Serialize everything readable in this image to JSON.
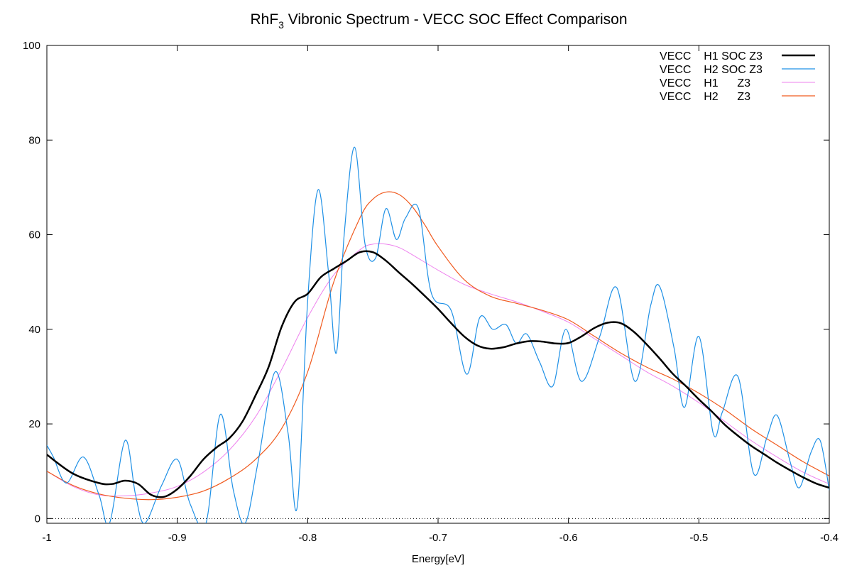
{
  "chart_data": {
    "type": "line",
    "title": "RhF3 Vibronic Spectrum - VECC SOC Effect Comparison",
    "title_main": "RhF",
    "title_sub": "3",
    "title_rest": " Vibronic Spectrum - VECC SOC Effect Comparison",
    "xlabel": "Energy[eV]",
    "ylabel": "",
    "xlim": [
      -1.0,
      -0.4
    ],
    "ylim": [
      -1,
      100
    ],
    "xticks": [
      -1.0,
      -0.9,
      -0.8,
      -0.7,
      -0.6,
      -0.5,
      -0.4
    ],
    "xtick_labels": [
      "-1",
      "-0.9",
      "-0.8",
      "-0.7",
      "-0.6",
      "-0.5",
      "-0.4"
    ],
    "yticks": [
      0,
      20,
      40,
      60,
      80,
      100
    ],
    "ytick_labels": [
      "0",
      "20",
      "40",
      "60",
      "80",
      "100"
    ],
    "grid": false,
    "zero_line": "dotted",
    "legend_position": "top-right",
    "series": [
      {
        "name": "VECC    H1 SOC Z3",
        "color": "#000000",
        "x": [
          -1.0,
          -0.98,
          -0.96,
          -0.95,
          -0.94,
          -0.93,
          -0.92,
          -0.91,
          -0.9,
          -0.89,
          -0.88,
          -0.87,
          -0.86,
          -0.85,
          -0.84,
          -0.83,
          -0.82,
          -0.81,
          -0.8,
          -0.79,
          -0.78,
          -0.77,
          -0.76,
          -0.75,
          -0.74,
          -0.73,
          -0.72,
          -0.71,
          -0.7,
          -0.69,
          -0.68,
          -0.67,
          -0.66,
          -0.65,
          -0.64,
          -0.63,
          -0.62,
          -0.61,
          -0.6,
          -0.59,
          -0.58,
          -0.57,
          -0.56,
          -0.55,
          -0.54,
          -0.53,
          -0.52,
          -0.51,
          -0.5,
          -0.49,
          -0.48,
          -0.47,
          -0.46,
          -0.45,
          -0.44,
          -0.43,
          -0.42,
          -0.41,
          -0.4
        ],
        "y": [
          13.5,
          9.5,
          7.5,
          7.3,
          8.0,
          7.3,
          5.0,
          4.6,
          6.2,
          9.0,
          12.5,
          15.0,
          17.0,
          20.5,
          26.0,
          32.0,
          40.5,
          45.8,
          47.5,
          51.0,
          52.8,
          54.5,
          56.3,
          56.3,
          54.5,
          52.0,
          49.6,
          47.0,
          44.3,
          41.3,
          38.5,
          36.6,
          35.9,
          36.2,
          37.0,
          37.5,
          37.4,
          37.0,
          37.1,
          38.5,
          40.3,
          41.4,
          41.3,
          39.5,
          36.8,
          33.8,
          30.6,
          28.0,
          25.2,
          22.6,
          19.8,
          17.5,
          15.4,
          13.6,
          11.8,
          10.2,
          8.7,
          7.4,
          6.5
        ]
      },
      {
        "name": "VECC    H2 SOC Z3",
        "color": "#1e90e6",
        "x": [
          -1.0,
          -0.995,
          -0.985,
          -0.972,
          -0.96,
          -0.952,
          -0.94,
          -0.932,
          -0.925,
          -0.912,
          -0.9,
          -0.89,
          -0.878,
          -0.867,
          -0.857,
          -0.848,
          -0.838,
          -0.825,
          -0.815,
          -0.808,
          -0.8,
          -0.792,
          -0.784,
          -0.778,
          -0.772,
          -0.764,
          -0.756,
          -0.748,
          -0.74,
          -0.732,
          -0.725,
          -0.715,
          -0.705,
          -0.69,
          -0.678,
          -0.668,
          -0.658,
          -0.648,
          -0.64,
          -0.632,
          -0.622,
          -0.612,
          -0.602,
          -0.59,
          -0.576,
          -0.563,
          -0.549,
          -0.537,
          -0.53,
          -0.519,
          -0.511,
          -0.5,
          -0.489,
          -0.482,
          -0.47,
          -0.458,
          -0.448,
          -0.44,
          -0.43,
          -0.423,
          -0.414,
          -0.407,
          -0.4
        ],
        "y": [
          15.5,
          13.0,
          7.5,
          13.0,
          5.0,
          -1.0,
          16.5,
          5.0,
          -1.0,
          7.0,
          12.5,
          3.0,
          -1.0,
          22.0,
          6.0,
          -1.0,
          12.0,
          31.0,
          18.0,
          2.5,
          46.0,
          69.5,
          52.0,
          35.0,
          60.0,
          78.5,
          58.0,
          55.0,
          65.5,
          59.0,
          63.5,
          65.5,
          47.5,
          44.0,
          30.5,
          42.5,
          40.0,
          41.0,
          37.0,
          39.0,
          33.0,
          28.0,
          40.0,
          29.0,
          38.5,
          48.8,
          29.0,
          45.0,
          49.0,
          36.0,
          23.5,
          38.5,
          18.0,
          22.5,
          30.0,
          9.5,
          17.0,
          21.8,
          12.0,
          6.5,
          14.0,
          16.5,
          6.0
        ]
      },
      {
        "name": "VECC    H1      Z3",
        "color": "#ee82ee",
        "x": [
          -1.0,
          -0.98,
          -0.96,
          -0.94,
          -0.92,
          -0.9,
          -0.88,
          -0.86,
          -0.84,
          -0.82,
          -0.8,
          -0.78,
          -0.76,
          -0.75,
          -0.74,
          -0.73,
          -0.72,
          -0.7,
          -0.68,
          -0.66,
          -0.64,
          -0.62,
          -0.6,
          -0.58,
          -0.56,
          -0.54,
          -0.52,
          -0.5,
          -0.48,
          -0.46,
          -0.44,
          -0.42,
          -0.4
        ],
        "y": [
          10.0,
          6.8,
          5.0,
          4.8,
          5.4,
          6.8,
          9.8,
          14.5,
          21.5,
          31.5,
          42.5,
          51.5,
          56.8,
          58.0,
          58.0,
          57.3,
          55.8,
          52.5,
          49.5,
          47.5,
          45.8,
          43.8,
          41.5,
          38.0,
          34.5,
          31.0,
          28.0,
          24.5,
          20.5,
          16.5,
          13.0,
          9.8,
          7.3
        ]
      },
      {
        "name": "VECC    H2      Z3",
        "color": "#f05a1e",
        "x": [
          -1.0,
          -0.98,
          -0.96,
          -0.94,
          -0.92,
          -0.9,
          -0.88,
          -0.86,
          -0.84,
          -0.82,
          -0.8,
          -0.78,
          -0.76,
          -0.75,
          -0.74,
          -0.73,
          -0.72,
          -0.71,
          -0.7,
          -0.68,
          -0.66,
          -0.64,
          -0.62,
          -0.6,
          -0.58,
          -0.56,
          -0.54,
          -0.52,
          -0.5,
          -0.48,
          -0.46,
          -0.44,
          -0.42,
          -0.4
        ],
        "y": [
          10.0,
          7.0,
          5.2,
          4.3,
          4.0,
          4.5,
          5.8,
          8.5,
          12.5,
          19.0,
          31.0,
          50.0,
          63.5,
          67.5,
          69.0,
          68.5,
          66.0,
          62.0,
          57.5,
          50.5,
          47.0,
          45.5,
          44.0,
          42.0,
          38.5,
          35.0,
          32.0,
          29.5,
          26.5,
          23.0,
          19.0,
          15.5,
          12.0,
          9.0
        ]
      }
    ]
  },
  "legend": {
    "entries": [
      "VECC    H1 SOC Z3",
      "VECC    H2 SOC Z3",
      "VECC    H1      Z3",
      "VECC    H2      Z3"
    ]
  }
}
